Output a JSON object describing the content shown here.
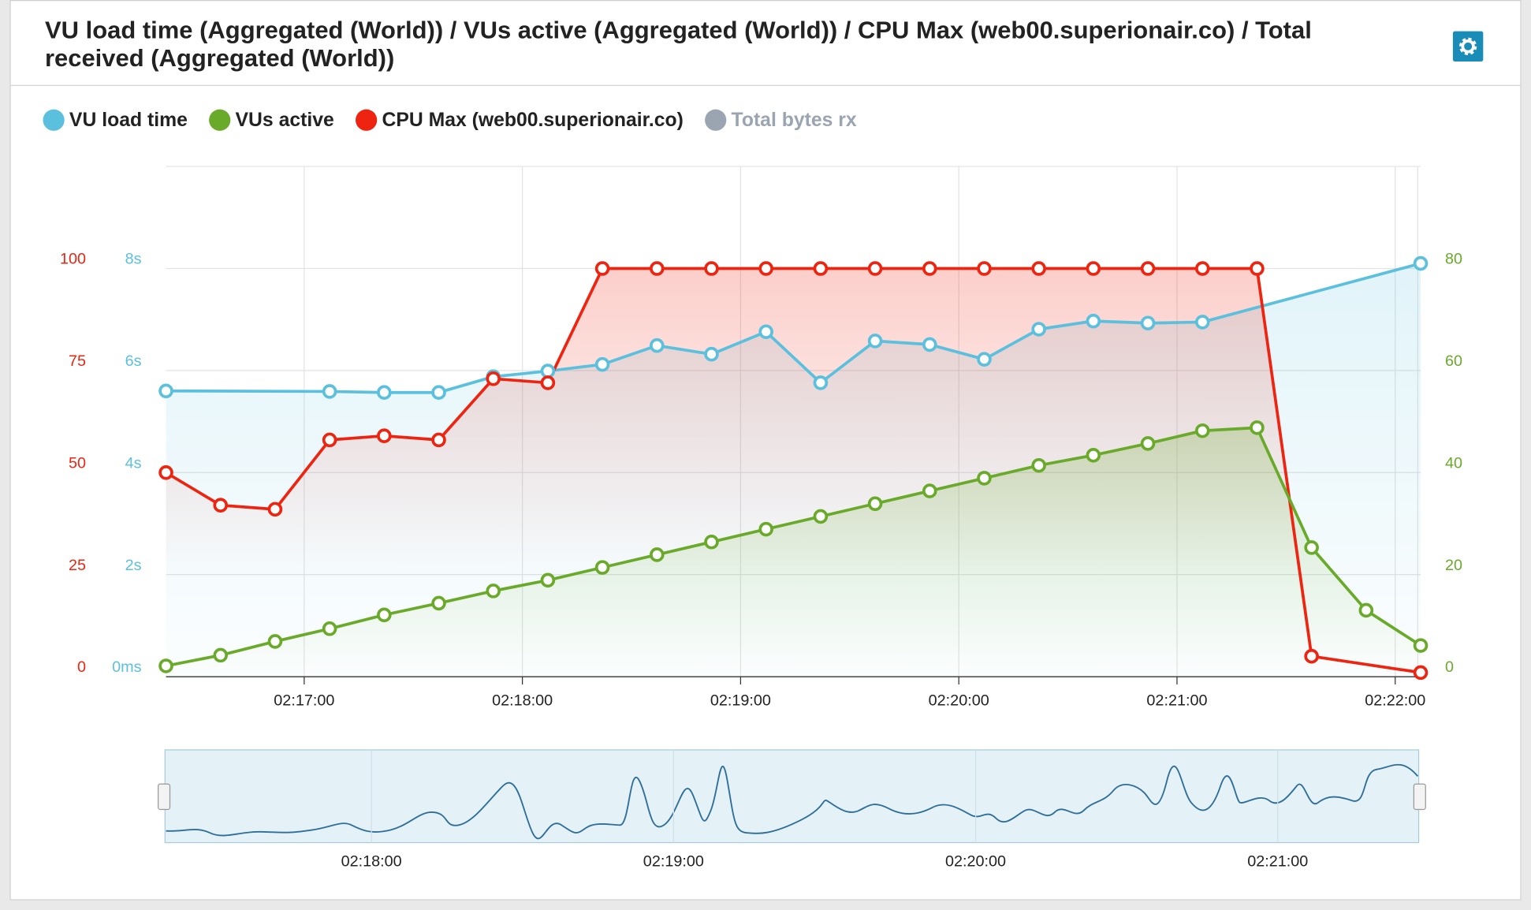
{
  "chart_data": {
    "type": "line",
    "title": "VU load time (Aggregated (World)) / VUs active (Aggregated (World)) / CPU Max (web00.superionair.co) / Total received (Aggregated (World))",
    "x": [
      "02:16:22",
      "02:16:37",
      "02:16:52",
      "02:17:07",
      "02:17:22",
      "02:17:37",
      "02:17:52",
      "02:18:07",
      "02:18:22",
      "02:18:37",
      "02:18:52",
      "02:19:07",
      "02:19:22",
      "02:19:37",
      "02:19:52",
      "02:20:07",
      "02:20:22",
      "02:20:37",
      "02:20:52",
      "02:21:07",
      "02:21:22",
      "02:21:37",
      "02:21:52",
      "02:22:07"
    ],
    "xlim": [
      "02:16:22",
      "02:22:07"
    ],
    "xticks": [
      "02:17:00",
      "02:18:00",
      "02:19:00",
      "02:20:00",
      "02:21:00",
      "02:22:00"
    ],
    "ylim": [
      0,
      125
    ],
    "yticks": [
      0,
      25,
      50,
      75,
      100
    ],
    "y2lim": [
      0,
      100
    ],
    "y2ticks": [
      0,
      20,
      40,
      60,
      80
    ],
    "y3lim": [
      0,
      10000
    ],
    "y3ticks": [
      {
        "value": 0,
        "label": "0ms"
      },
      {
        "value": 2000,
        "label": "2s"
      },
      {
        "value": 4000,
        "label": "4s"
      },
      {
        "value": 6000,
        "label": "6s"
      },
      {
        "value": 8000,
        "label": "8s"
      }
    ],
    "grid": true,
    "series": [
      {
        "name": "VU load time",
        "color": "#5bc0de",
        "axis": "y3",
        "x": [
          "02:16:22",
          "02:17:07",
          "02:17:22",
          "02:17:37",
          "02:17:52",
          "02:18:07",
          "02:18:22",
          "02:18:37",
          "02:18:52",
          "02:19:07",
          "02:19:22",
          "02:19:37",
          "02:19:52",
          "02:20:07",
          "02:20:22",
          "02:20:37",
          "02:20:52",
          "02:21:07",
          "02:22:07"
        ],
        "values": [
          5600,
          5590,
          5570,
          5570,
          5880,
          5990,
          6120,
          6490,
          6320,
          6760,
          5760,
          6580,
          6510,
          6220,
          6810,
          6970,
          6930,
          6950,
          8100
        ]
      },
      {
        "name": "VUs active",
        "color": "#6aaa2a",
        "axis": "y2",
        "values": [
          2.1,
          4.2,
          6.9,
          9.4,
          12.1,
          14.4,
          16.8,
          18.9,
          21.4,
          23.9,
          26.4,
          28.9,
          31.4,
          33.9,
          36.4,
          38.9,
          41.4,
          43.4,
          45.7,
          48.2,
          48.8,
          25.3,
          13,
          6.1
        ]
      },
      {
        "name": "CPU Max (web00.superionair.co)",
        "color": "#ee2410",
        "axis": "y",
        "x": [
          "02:16:22",
          "02:16:37",
          "02:16:52",
          "02:17:07",
          "02:17:22",
          "02:17:37",
          "02:17:52",
          "02:18:07",
          "02:18:22",
          "02:18:37",
          "02:18:52",
          "02:19:07",
          "02:19:22",
          "02:19:37",
          "02:19:52",
          "02:20:07",
          "02:20:22",
          "02:20:37",
          "02:20:52",
          "02:21:07",
          "02:21:22",
          "02:21:37",
          "02:22:07"
        ],
        "values": [
          50,
          42,
          41,
          58,
          59,
          58,
          73,
          72,
          100,
          100,
          100,
          100,
          100,
          100,
          100,
          100,
          100,
          100,
          100,
          100,
          100,
          5,
          1
        ]
      },
      {
        "name": "Total bytes rx",
        "color": "#9aa5b1",
        "visible": false
      }
    ],
    "navigator": {
      "xlim": [
        "02:17:19",
        "02:21:28"
      ],
      "xticks": [
        "02:18:00",
        "02:19:00",
        "02:20:00",
        "02:21:00"
      ]
    }
  }
}
